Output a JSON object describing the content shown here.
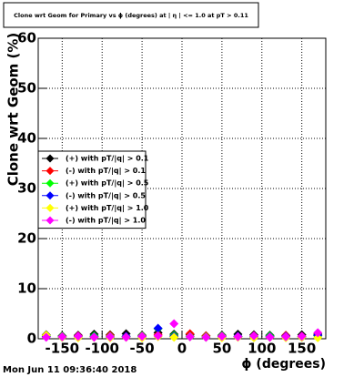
{
  "chart_data": {
    "type": "scatter",
    "title": "Clone wrt Geom for Primary vs ϕ (degrees) at | η | <= 1.0 at pT > 0.11",
    "x_label": "ϕ (degrees)",
    "y_label": "Clone wrt Geom (%)",
    "timestamp": "Mon Jun 11 09:36:40 2018",
    "x": [
      -170,
      -150,
      -130,
      -110,
      -90,
      -70,
      -50,
      -30,
      -10,
      10,
      30,
      50,
      70,
      90,
      110,
      130,
      150,
      170
    ],
    "series": [
      {
        "name": "(+) with pT/|q| > 0.1",
        "color": "#000000",
        "values": [
          0.8,
          0.6,
          0.7,
          0.9,
          0.8,
          1.0,
          0.7,
          1.2,
          0.9,
          0.8,
          0.6,
          0.7,
          0.9,
          0.8,
          0.7,
          0.6,
          0.8,
          0.9
        ]
      },
      {
        "name": "(-) with pT/|q| > 0.1",
        "color": "#ff0000",
        "values": [
          0.5,
          0.4,
          0.6,
          0.5,
          0.7,
          0.5,
          0.6,
          0.8,
          0.5,
          1.0,
          0.6,
          0.5,
          0.4,
          0.6,
          0.5,
          0.7,
          0.5,
          0.6
        ]
      },
      {
        "name": "(+) with pT/|q| > 0.5",
        "color": "#00ff00",
        "values": [
          0.6,
          0.5,
          0.4,
          0.6,
          0.5,
          0.4,
          0.6,
          2.0,
          0.7,
          0.5,
          0.4,
          0.6,
          0.5,
          0.4,
          0.6,
          0.5,
          0.4,
          0.6
        ]
      },
      {
        "name": "(-) with pT/|q| > 0.5",
        "color": "#0000ff",
        "values": [
          0.4,
          0.3,
          0.5,
          0.4,
          0.3,
          0.5,
          0.4,
          2.1,
          0.5,
          0.4,
          0.3,
          0.4,
          0.5,
          0.3,
          0.4,
          0.5,
          0.3,
          0.7
        ]
      },
      {
        "name": "(+) with pT/|q| > 1.0",
        "color": "#ffff00",
        "values": [
          0.7,
          0.3,
          0.2,
          0.3,
          0.2,
          0.3,
          0.2,
          0.4,
          0.3,
          0.4,
          0.3,
          0.2,
          0.3,
          0.2,
          0.3,
          0.2,
          0.3,
          0.2
        ]
      },
      {
        "name": "(-) with pT/|q| > 1.0",
        "color": "#ff00ff",
        "values": [
          0.3,
          0.4,
          0.5,
          0.3,
          0.4,
          0.3,
          0.5,
          0.6,
          3.0,
          0.4,
          0.3,
          0.5,
          0.4,
          0.6,
          0.3,
          0.4,
          0.5,
          1.2
        ]
      }
    ],
    "xlim": [
      -180,
      180
    ],
    "xticks": [
      -150,
      -100,
      -50,
      0,
      50,
      100,
      150
    ],
    "ylim": [
      0,
      60
    ],
    "yticks": [
      0,
      10,
      20,
      30,
      40,
      50,
      60
    ],
    "grid": true,
    "legend": "left"
  }
}
